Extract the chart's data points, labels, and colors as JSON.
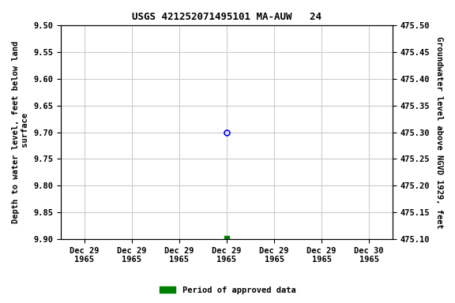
{
  "title": "USGS 421252071495101 MA-AUW   24",
  "ylabel_left": "Depth to water level, feet below land\n surface",
  "ylabel_right": "Groundwater level above NGVD 1929, feet",
  "ylim_left": [
    9.9,
    9.5
  ],
  "ylim_right": [
    475.1,
    475.5
  ],
  "yticks_left": [
    9.5,
    9.55,
    9.6,
    9.65,
    9.7,
    9.75,
    9.8,
    9.85,
    9.9
  ],
  "yticks_right": [
    475.5,
    475.45,
    475.4,
    475.35,
    475.3,
    475.25,
    475.2,
    475.15,
    475.1
  ],
  "data_point_x": 3,
  "data_point_y": 9.7,
  "data_point_color": "blue",
  "data_point_marker": "o",
  "data_point_markerfacecolor": "none",
  "data_point_markersize": 5,
  "green_point_x": 3,
  "green_point_y": 9.898,
  "green_point_color": "green",
  "green_point_marker": "s",
  "green_point_markersize": 4,
  "legend_label": "Period of approved data",
  "legend_color": "green",
  "grid_color": "#cccccc",
  "background_color": "white",
  "title_fontsize": 9,
  "label_fontsize": 7.5,
  "tick_fontsize": 7.5,
  "xtick_labels": [
    "Dec 29\n1965",
    "Dec 29\n1965",
    "Dec 29\n1965",
    "Dec 29\n1965",
    "Dec 29\n1965",
    "Dec 29\n1965",
    "Dec 30\n1965"
  ],
  "xtick_positions": [
    0,
    1,
    2,
    3,
    4,
    5,
    6
  ],
  "xlim": [
    -0.5,
    6.5
  ]
}
